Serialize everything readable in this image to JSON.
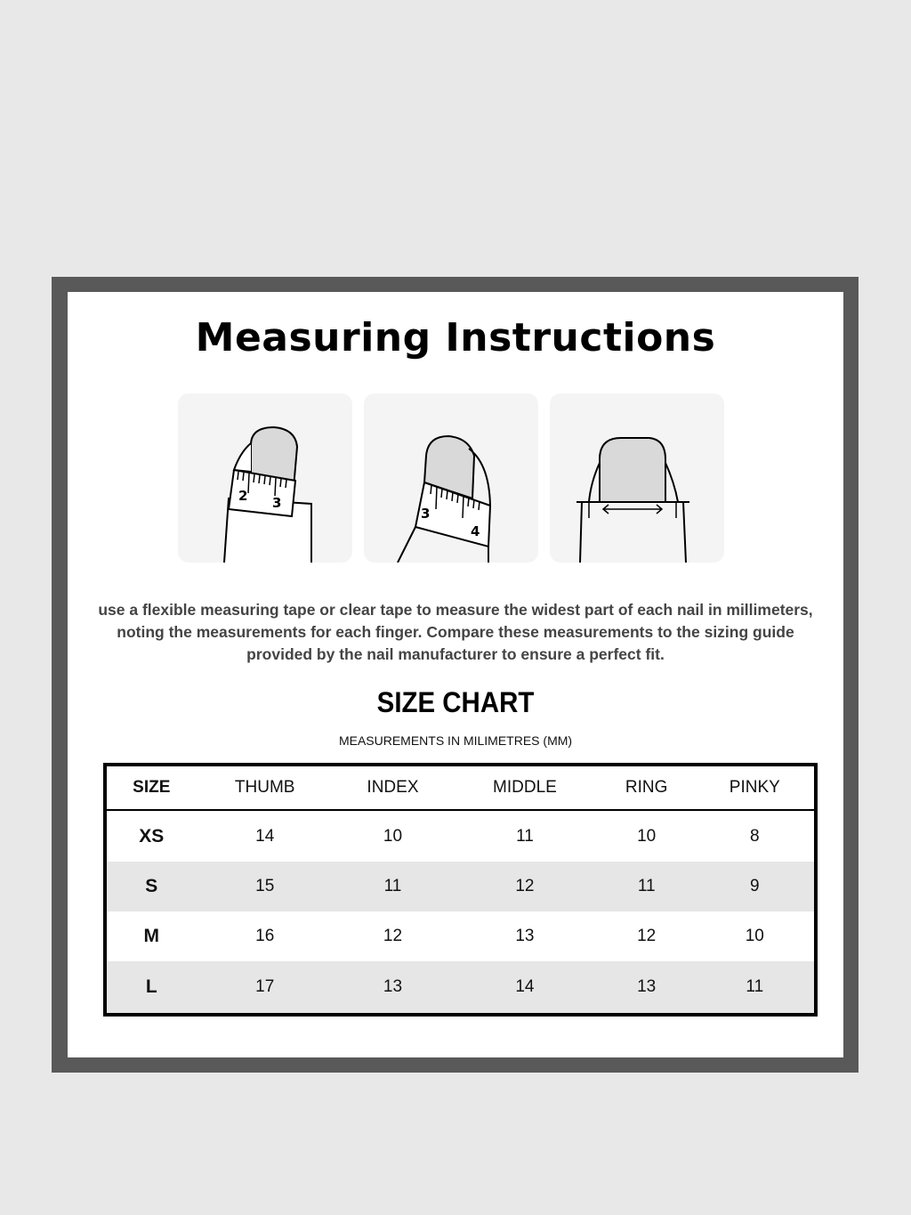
{
  "title": "Measuring Instructions",
  "illustrations": [
    {
      "icon": "finger-tape-measure-icon",
      "tape_numbers": [
        "2",
        "3"
      ]
    },
    {
      "icon": "finger-tape-measure-tilted-icon",
      "tape_numbers": [
        "3",
        "4"
      ]
    },
    {
      "icon": "nail-width-arrow-icon"
    }
  ],
  "instructions": "use a flexible measuring tape or clear tape to measure the widest part of each nail in millimeters, noting the measurements for each finger. Compare these measurements to the sizing guide provided by the nail manufacturer to ensure a perfect fit.",
  "size_chart": {
    "title": "SIZE CHART",
    "subtitle": "MEASUREMENTS IN MILIMETRES (MM)",
    "headers": [
      "SIZE",
      "THUMB",
      "INDEX",
      "MIDDLE",
      "RING",
      "PINKY"
    ],
    "rows": [
      [
        "XS",
        "14",
        "10",
        "11",
        "10",
        "8"
      ],
      [
        "S",
        "15",
        "11",
        "12",
        "11",
        "9"
      ],
      [
        "M",
        "16",
        "12",
        "13",
        "12",
        "10"
      ],
      [
        "L",
        "17",
        "13",
        "14",
        "13",
        "11"
      ]
    ]
  },
  "colors": {
    "frame": "#595959",
    "background": "#e8e8e8",
    "row_alt": "#e6e6e6"
  }
}
